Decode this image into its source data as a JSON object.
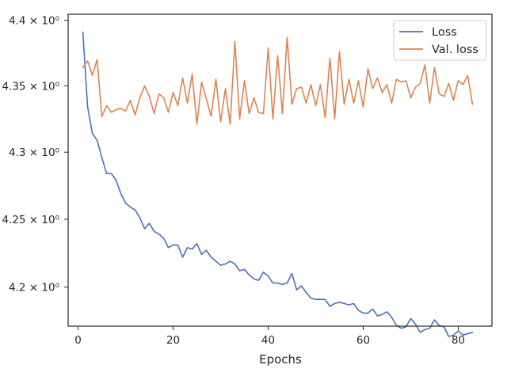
{
  "chart_data": {
    "type": "line",
    "title": "",
    "xlabel": "Epochs",
    "ylabel": "",
    "xlim": [
      -2.1,
      87.1
    ],
    "ylim": [
      4.1715,
      4.4047
    ],
    "yscale": "log",
    "grid": false,
    "legend_position": "top-right",
    "x_ticks": [
      {
        "value": 0,
        "label": "0"
      },
      {
        "value": 20,
        "label": "20"
      },
      {
        "value": 40,
        "label": "40"
      },
      {
        "value": 60,
        "label": "60"
      },
      {
        "value": 80,
        "label": "80"
      }
    ],
    "y_ticks": [
      {
        "value": 4.2,
        "label": "4.2 × 10⁰"
      },
      {
        "value": 4.25,
        "label": "4.25 × 10⁰"
      },
      {
        "value": 4.3,
        "label": "4.3 × 10⁰"
      },
      {
        "value": 4.35,
        "label": "4.35 × 10⁰"
      },
      {
        "value": 4.4,
        "label": "4.4 × 10⁰"
      }
    ],
    "x": [
      1,
      2,
      3,
      4,
      5,
      6,
      7,
      8,
      9,
      10,
      11,
      12,
      13,
      14,
      15,
      16,
      17,
      18,
      19,
      20,
      21,
      22,
      23,
      24,
      25,
      26,
      27,
      28,
      29,
      30,
      31,
      32,
      33,
      34,
      35,
      36,
      37,
      38,
      39,
      40,
      41,
      42,
      43,
      44,
      45,
      46,
      47,
      48,
      49,
      50,
      51,
      52,
      53,
      54,
      55,
      56,
      57,
      58,
      59,
      60,
      61,
      62,
      63,
      64,
      65,
      66,
      67,
      68,
      69,
      70,
      71,
      72,
      73,
      74,
      75,
      76,
      77,
      78,
      79,
      80,
      81,
      82,
      83
    ],
    "series": [
      {
        "name": "Loss",
        "color": "#4c72b0",
        "values": [
          4.391,
          4.334,
          4.314,
          4.309,
          4.296,
          4.284,
          4.284,
          4.279,
          4.269,
          4.262,
          4.259,
          4.257,
          4.251,
          4.243,
          4.247,
          4.241,
          4.239,
          4.236,
          4.229,
          4.231,
          4.231,
          4.222,
          4.229,
          4.228,
          4.232,
          4.224,
          4.227,
          4.222,
          4.219,
          4.216,
          4.217,
          4.219,
          4.217,
          4.212,
          4.213,
          4.209,
          4.206,
          4.205,
          4.211,
          4.208,
          4.203,
          4.203,
          4.202,
          4.203,
          4.21,
          4.198,
          4.201,
          4.196,
          4.192,
          4.191,
          4.191,
          4.191,
          4.186,
          4.188,
          4.189,
          4.188,
          4.187,
          4.188,
          4.183,
          4.181,
          4.181,
          4.184,
          4.179,
          4.18,
          4.182,
          4.178,
          4.172,
          4.17,
          4.171,
          4.177,
          4.173,
          4.167,
          4.169,
          4.17,
          4.176,
          4.172,
          4.171,
          4.164,
          4.165,
          4.168,
          4.165,
          4.166,
          4.167
        ]
      },
      {
        "name": "Val. loss",
        "color": "#dd8452",
        "values": [
          4.364,
          4.369,
          4.358,
          4.37,
          4.327,
          4.335,
          4.33,
          4.332,
          4.333,
          4.331,
          4.339,
          4.328,
          4.341,
          4.35,
          4.342,
          4.329,
          4.344,
          4.341,
          4.33,
          4.345,
          4.335,
          4.356,
          4.337,
          4.359,
          4.321,
          4.353,
          4.34,
          4.327,
          4.355,
          4.323,
          4.348,
          4.321,
          4.384,
          4.325,
          4.354,
          4.329,
          4.341,
          4.33,
          4.329,
          4.379,
          4.325,
          4.373,
          4.329,
          4.387,
          4.336,
          4.348,
          4.349,
          4.337,
          4.351,
          4.335,
          4.351,
          4.326,
          4.371,
          4.325,
          4.376,
          4.336,
          4.355,
          4.337,
          4.354,
          4.334,
          4.363,
          4.348,
          4.356,
          4.345,
          4.351,
          4.337,
          4.355,
          4.353,
          4.354,
          4.341,
          4.349,
          4.352,
          4.366,
          4.337,
          4.364,
          4.344,
          4.342,
          4.352,
          4.339,
          4.354,
          4.351,
          4.358,
          4.336
        ]
      }
    ]
  }
}
